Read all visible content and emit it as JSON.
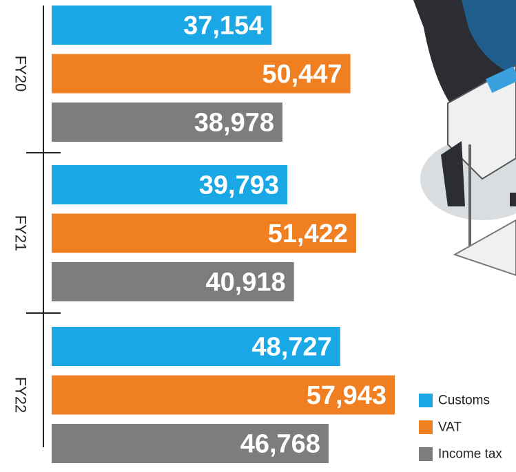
{
  "chart_data": {
    "type": "bar",
    "orientation": "horizontal",
    "categories": [
      "FY20",
      "FY21",
      "FY22"
    ],
    "series": [
      {
        "name": "Customs",
        "color": "#1aa7e6",
        "values": [
          37154,
          39793,
          48727
        ],
        "value_labels": [
          "37,154",
          "39,793",
          "48,727"
        ]
      },
      {
        "name": "VAT",
        "color": "#f07f22",
        "values": [
          50447,
          51422,
          57943
        ],
        "value_labels": [
          "50,447",
          "51,422",
          "57,943"
        ]
      },
      {
        "name": "Income tax",
        "color": "#7d7d80",
        "values": [
          38978,
          40918,
          46768
        ],
        "value_labels": [
          "38,978",
          "40,918",
          "46,768"
        ]
      }
    ]
  }
}
